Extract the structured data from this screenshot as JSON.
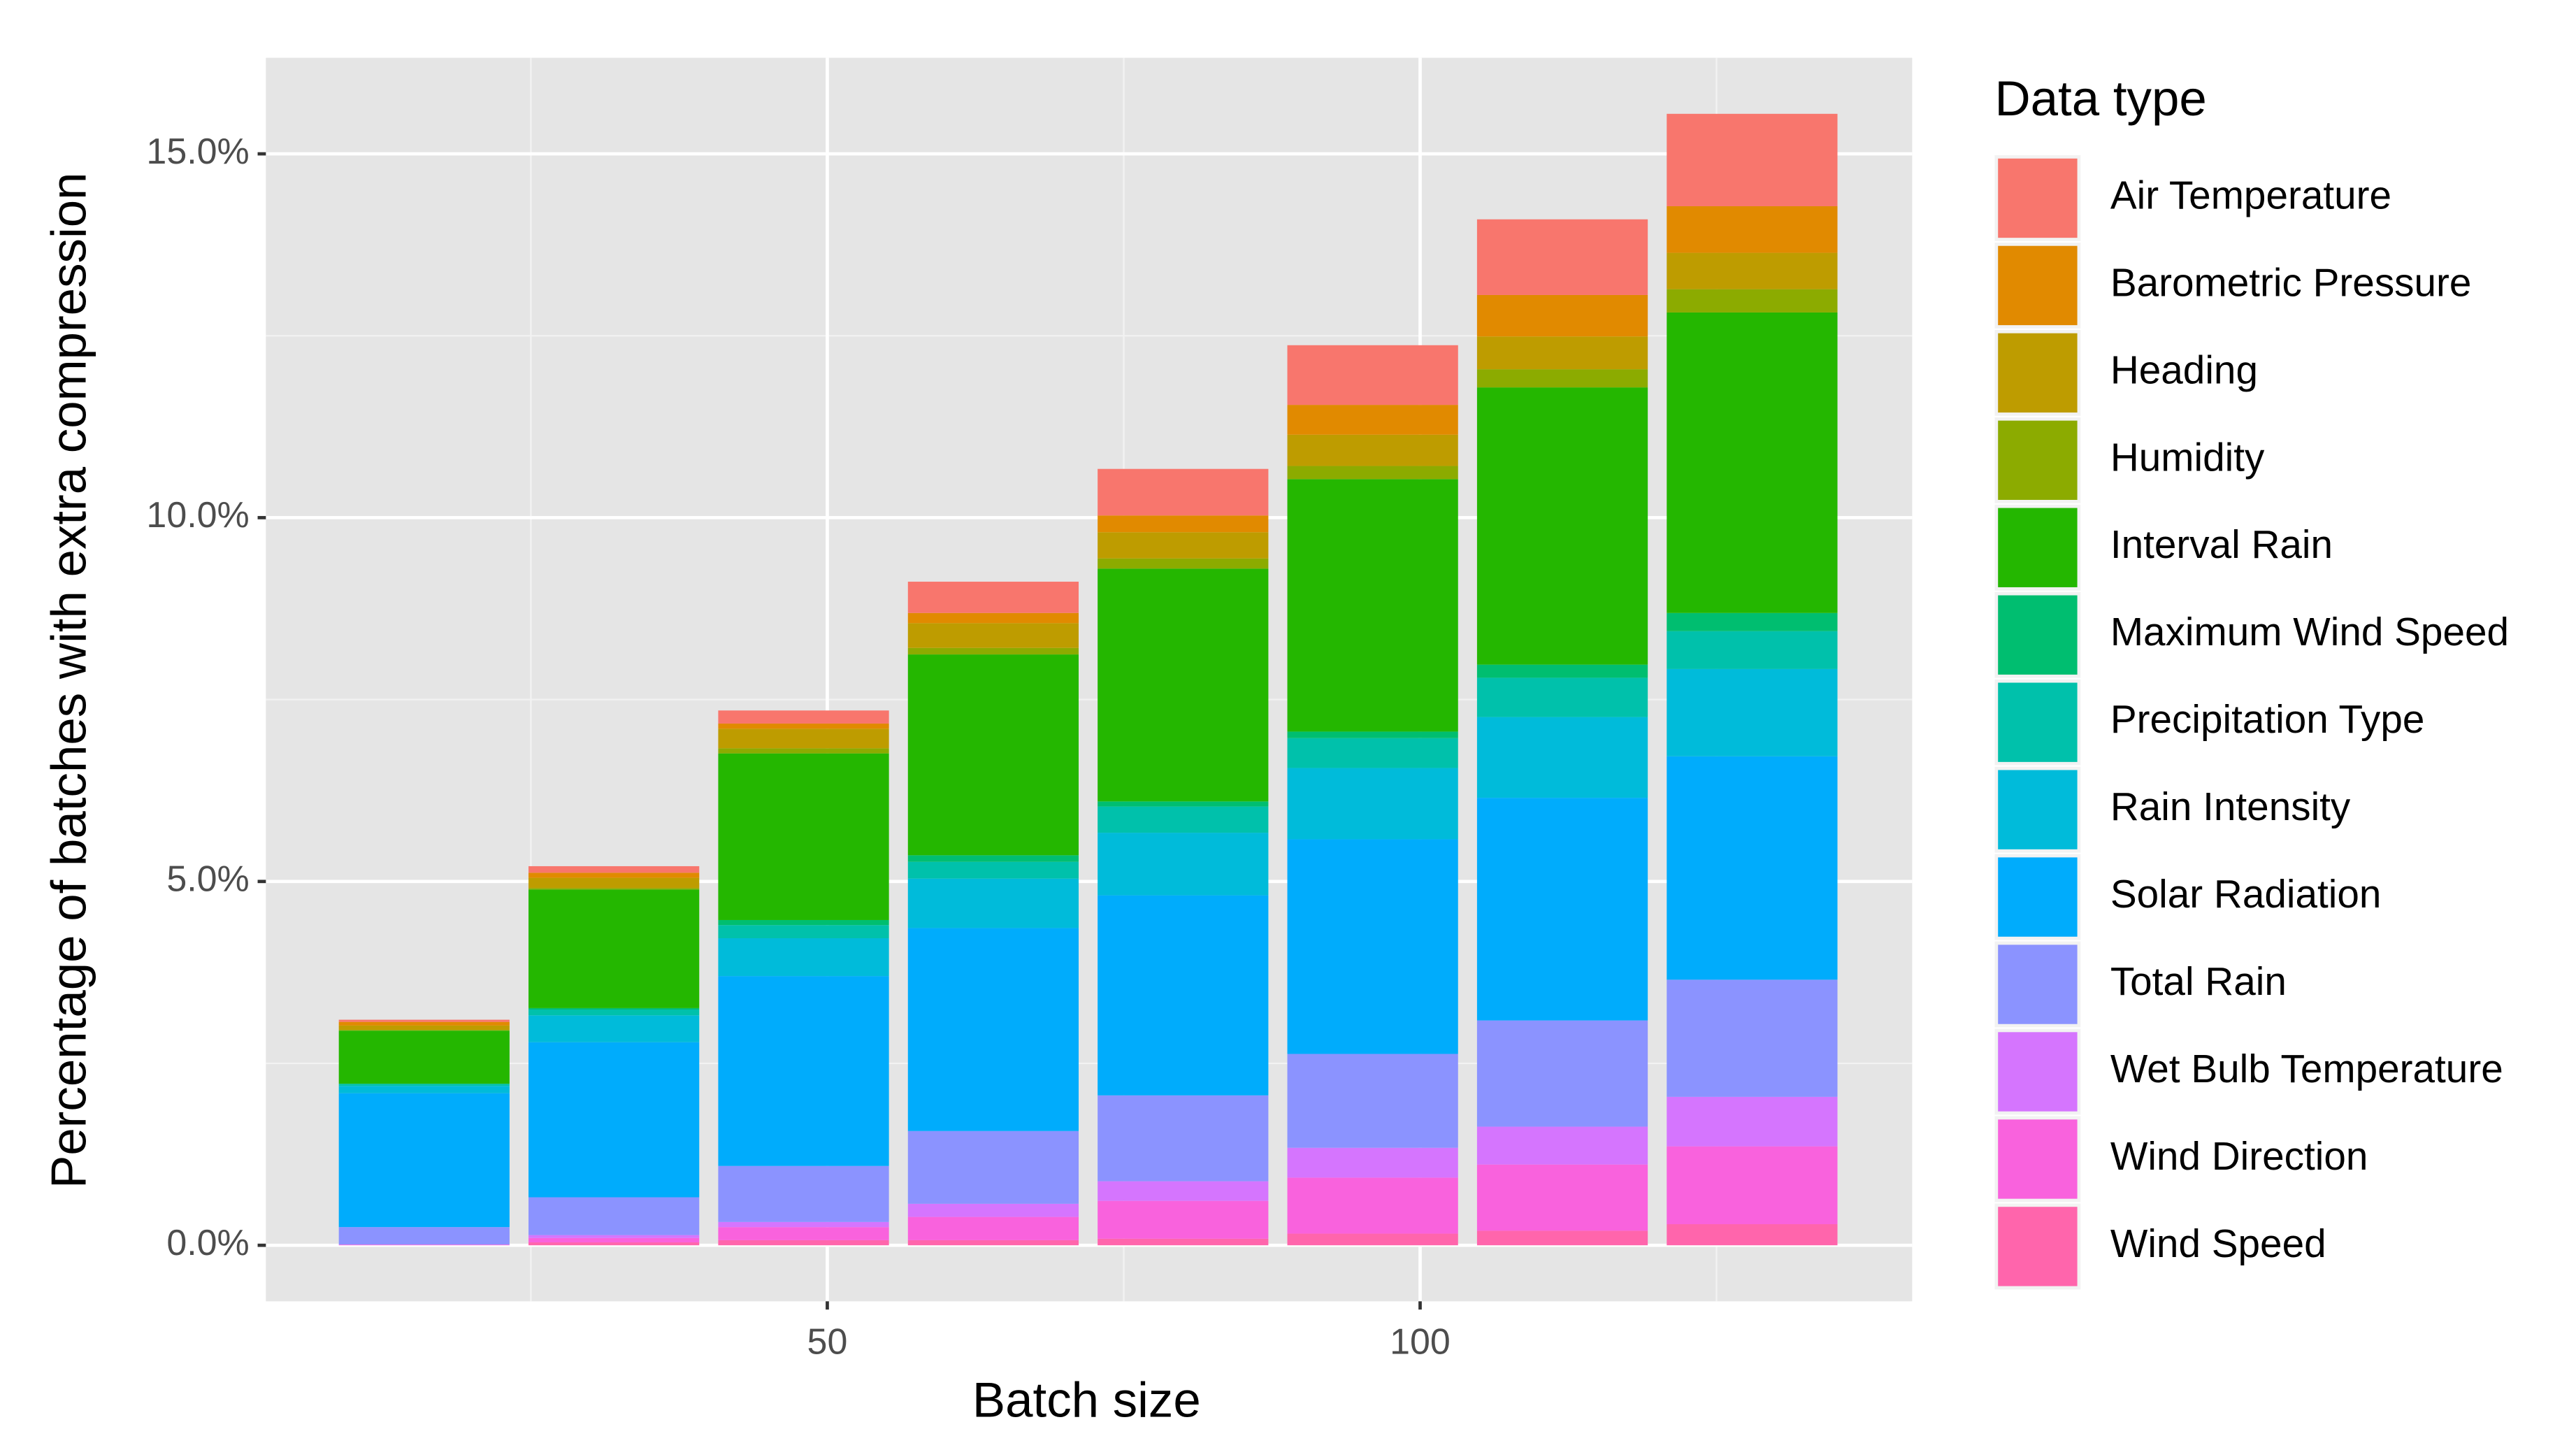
{
  "chart_data": {
    "type": "bar",
    "stacked": true,
    "x_label": "Batch size",
    "y_label": "Percentage of batches with extra compression",
    "legend_title": "Data type",
    "legend_position": "right",
    "grid": true,
    "background": "#e5e5e5",
    "bar_width": 14.4,
    "x": [
      16,
      32,
      48,
      64,
      80,
      96,
      112,
      128
    ],
    "xlim": [
      2.65,
      141.5
    ],
    "xticks": [
      50,
      100
    ],
    "x_minor_ticks": [
      25,
      75,
      125
    ],
    "ylim": [
      -0.77,
      16.32
    ],
    "yticks": [
      {
        "value": 0,
        "label": "0.0%"
      },
      {
        "value": 5,
        "label": "5.0%"
      },
      {
        "value": 10,
        "label": "10.0%"
      },
      {
        "value": 15,
        "label": "15.0%"
      }
    ],
    "y_minor_ticks": [
      2.5,
      7.5,
      12.5
    ],
    "series": [
      {
        "name": "Air Temperature",
        "color": "#F8766D",
        "values": [
          0.03,
          0.09,
          0.18,
          0.43,
          0.64,
          0.82,
          1.04,
          1.27
        ]
      },
      {
        "name": "Barometric Pressure",
        "color": "#E18A00",
        "values": [
          0.05,
          0.07,
          0.07,
          0.14,
          0.23,
          0.41,
          0.57,
          0.64
        ]
      },
      {
        "name": "Heading",
        "color": "#BE9C00",
        "values": [
          0.06,
          0.14,
          0.27,
          0.34,
          0.36,
          0.43,
          0.45,
          0.5
        ]
      },
      {
        "name": "Humidity",
        "color": "#8CAB00",
        "values": [
          0.01,
          0.02,
          0.07,
          0.09,
          0.14,
          0.18,
          0.25,
          0.32
        ]
      },
      {
        "name": "Interval Rain",
        "color": "#24B700",
        "values": [
          0.73,
          1.63,
          2.29,
          2.76,
          3.2,
          3.47,
          3.81,
          4.13
        ]
      },
      {
        "name": "Maximum Wind Speed",
        "color": "#00BE70",
        "values": [
          0,
          0.02,
          0.07,
          0.09,
          0.07,
          0.09,
          0.18,
          0.25
        ]
      },
      {
        "name": "Precipitation Type",
        "color": "#00C1AB",
        "values": [
          0.03,
          0.08,
          0.18,
          0.23,
          0.36,
          0.41,
          0.54,
          0.52
        ]
      },
      {
        "name": "Rain Intensity",
        "color": "#00BBDA",
        "values": [
          0.1,
          0.37,
          0.52,
          0.68,
          0.86,
          0.98,
          1.11,
          1.2
        ]
      },
      {
        "name": "Solar Radiation",
        "color": "#00ACFC",
        "values": [
          1.84,
          2.13,
          2.61,
          2.79,
          2.75,
          2.95,
          3.06,
          3.07
        ]
      },
      {
        "name": "Total Rain",
        "color": "#8B93FF",
        "values": [
          0.24,
          0.52,
          0.77,
          1.0,
          1.18,
          1.29,
          1.46,
          1.61
        ]
      },
      {
        "name": "Wet Bulb Temperature",
        "color": "#D575FE",
        "values": [
          0,
          0.04,
          0.07,
          0.18,
          0.27,
          0.41,
          0.52,
          0.68
        ]
      },
      {
        "name": "Wind Direction",
        "color": "#F962DD",
        "values": [
          0.01,
          0.06,
          0.18,
          0.32,
          0.52,
          0.77,
          0.91,
          1.07
        ]
      },
      {
        "name": "Wind Speed",
        "color": "#FF65AC",
        "values": [
          0,
          0.04,
          0.07,
          0.07,
          0.09,
          0.16,
          0.2,
          0.29
        ]
      }
    ]
  }
}
